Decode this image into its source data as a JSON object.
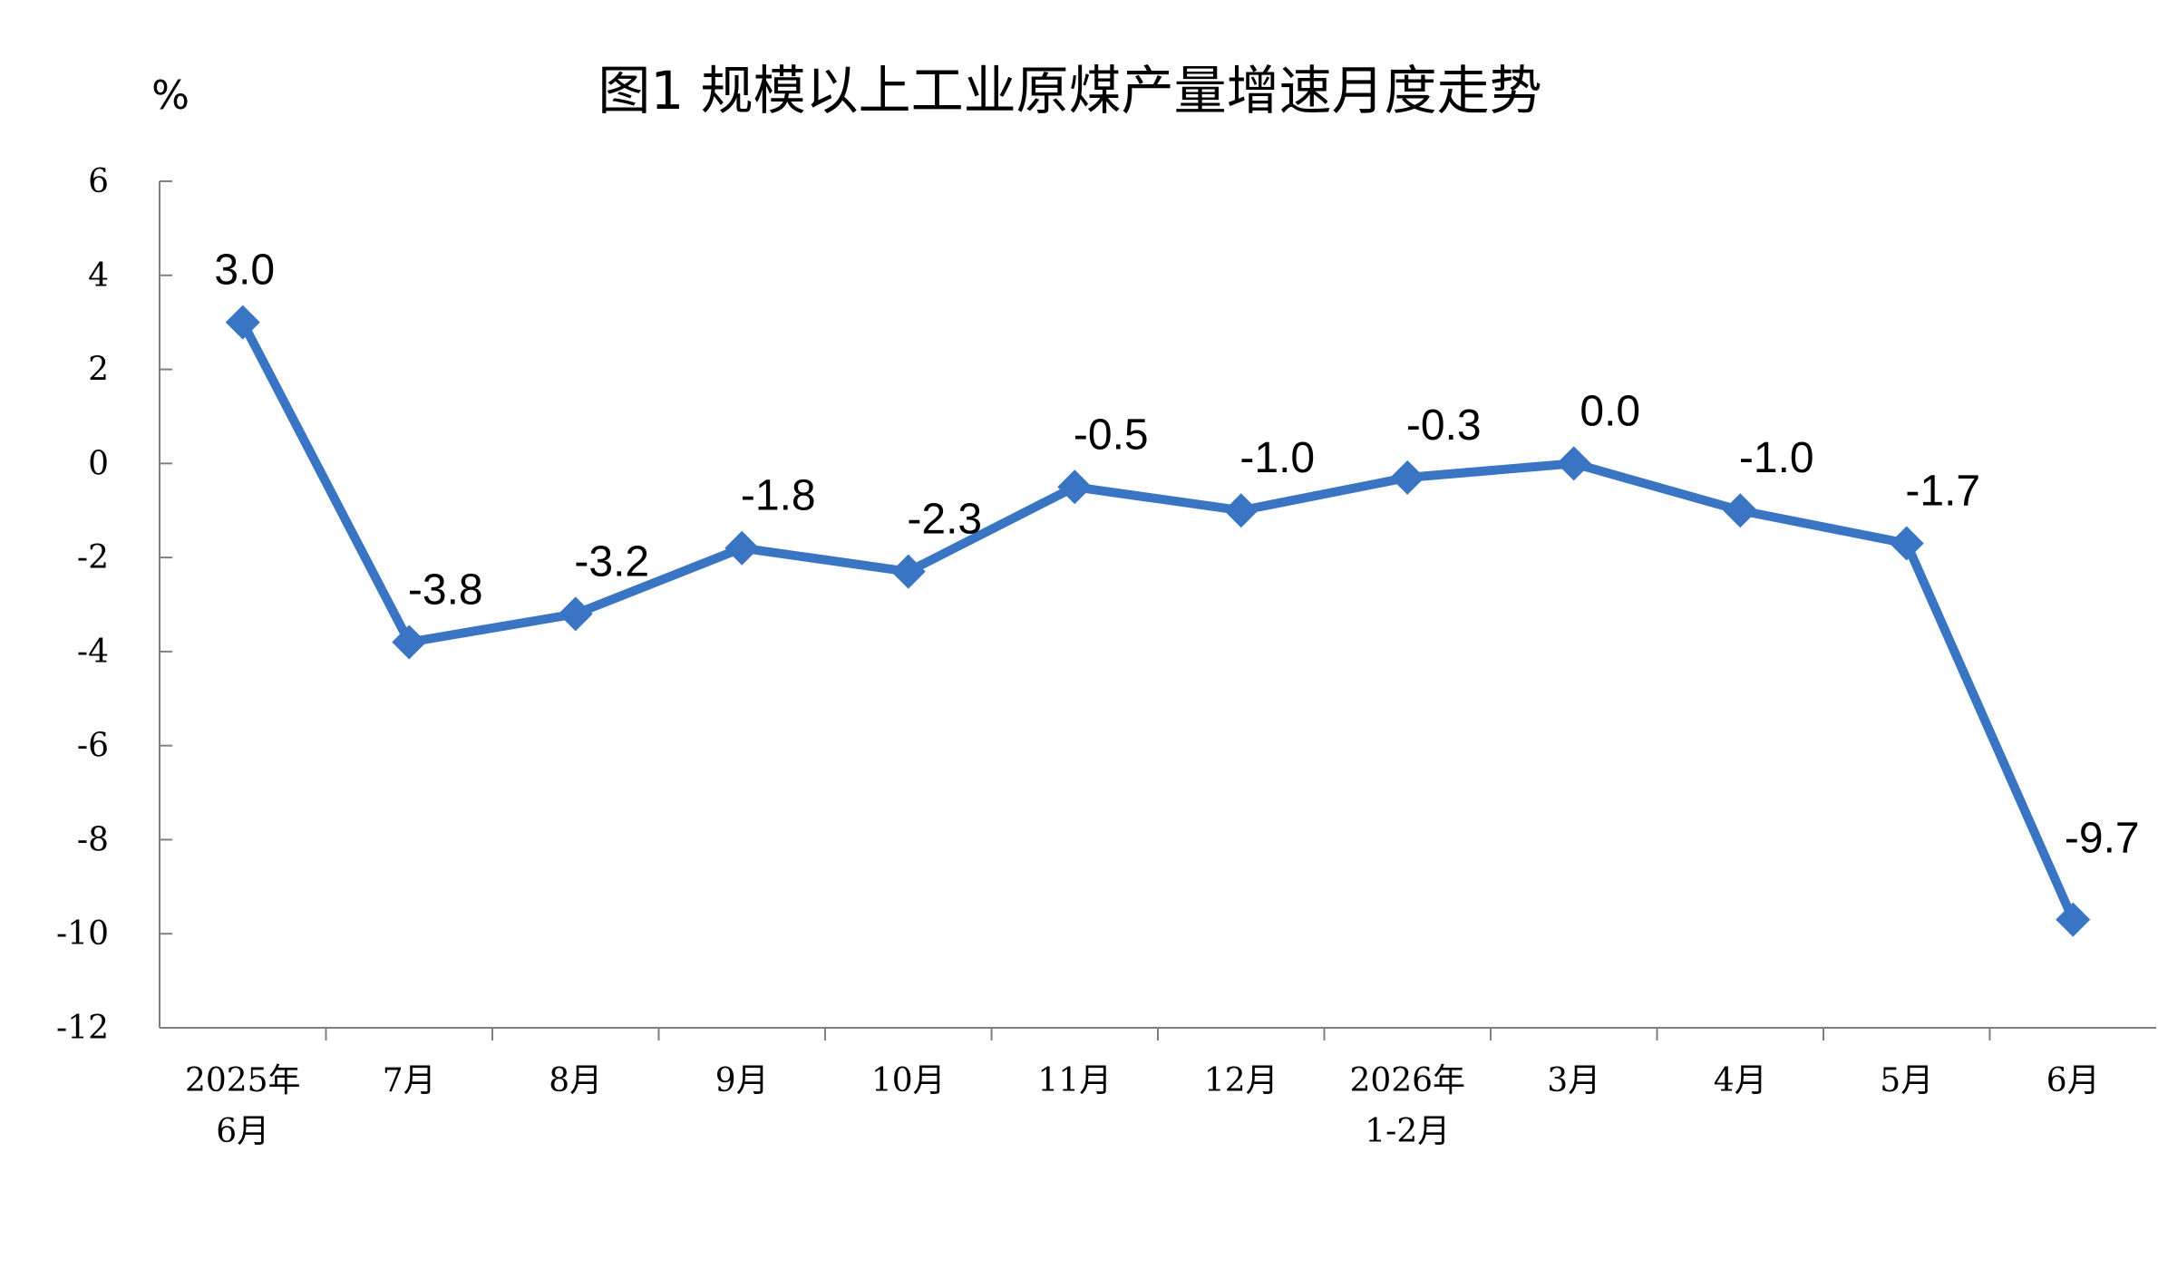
{
  "chart_data": {
    "type": "line",
    "title": "图1  规模以上工业原煤产量增速月度走势",
    "ylabel": "%",
    "xlabel": "",
    "ylim": [
      -12,
      6
    ],
    "yticks": [
      6,
      4,
      2,
      0,
      -2,
      -4,
      -6,
      -8,
      -10,
      -12
    ],
    "grid": false,
    "legend": "none",
    "categories": [
      [
        "2025年",
        "6月"
      ],
      [
        "7月"
      ],
      [
        "8月"
      ],
      [
        "9月"
      ],
      [
        "10月"
      ],
      [
        "11月"
      ],
      [
        "12月"
      ],
      [
        "2026年",
        "1-2月"
      ],
      [
        "3月"
      ],
      [
        "4月"
      ],
      [
        "5月"
      ],
      [
        "6月"
      ]
    ],
    "series": [
      {
        "values": [
          3.0,
          -3.8,
          -3.2,
          -1.8,
          -2.3,
          -0.5,
          -1.0,
          -0.3,
          0.0,
          -1.0,
          -1.7,
          -9.7
        ],
        "labels": [
          "3.0",
          "-3.8",
          "-3.2",
          "-1.8",
          "-2.3",
          "-0.5",
          "-1.0",
          "-0.3",
          "0.0",
          "-1.0",
          "-1.7",
          "-9.7"
        ],
        "color": "#3A75C4"
      }
    ]
  }
}
